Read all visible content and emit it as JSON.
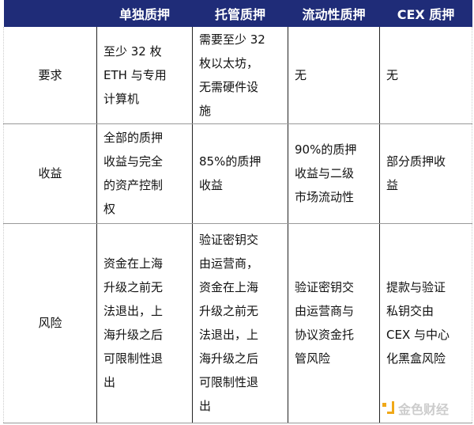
{
  "headers": [
    "",
    "单独质押",
    "托管质押",
    "流动性质押",
    "CEX 质押"
  ],
  "rows": [
    {
      "label": "要求",
      "cells": [
        [
          "至少 32 枚",
          "ETH 与专用",
          "计算机"
        ],
        [
          "需要至少 32",
          "枚以太坊，",
          "无需硬件设",
          "施"
        ],
        [
          "无"
        ],
        [
          "无"
        ]
      ]
    },
    {
      "label": "收益",
      "cells": [
        [
          "全部的质押",
          "收益与完全",
          "的资产控制",
          "权"
        ],
        [
          "85%的质押",
          "收益"
        ],
        [
          "90%的质押",
          "收益与二级",
          "市场流动性"
        ],
        [
          "部分质押收",
          "益"
        ]
      ]
    },
    {
      "label": "风险",
      "cells": [
        [
          "资金在上海",
          "升级之前无",
          "法退出，上",
          "海升级之后",
          "可限制性退",
          "出"
        ],
        [
          "验证密钥交",
          "由运营商，",
          "资金在上海",
          "升级之前无",
          "法退出，上",
          "海升级之后",
          "可限制性退",
          "出"
        ],
        [
          "验证密钥交",
          "由运营商与",
          "协议资金托",
          "管风险"
        ],
        [
          "提款与验证",
          "私钥交由",
          "CEX 与中心",
          "化黑盒风险"
        ]
      ]
    }
  ],
  "watermark": "金色财经",
  "colors": {
    "header_bg": "#1f2c78",
    "logo": "#f0a818"
  }
}
